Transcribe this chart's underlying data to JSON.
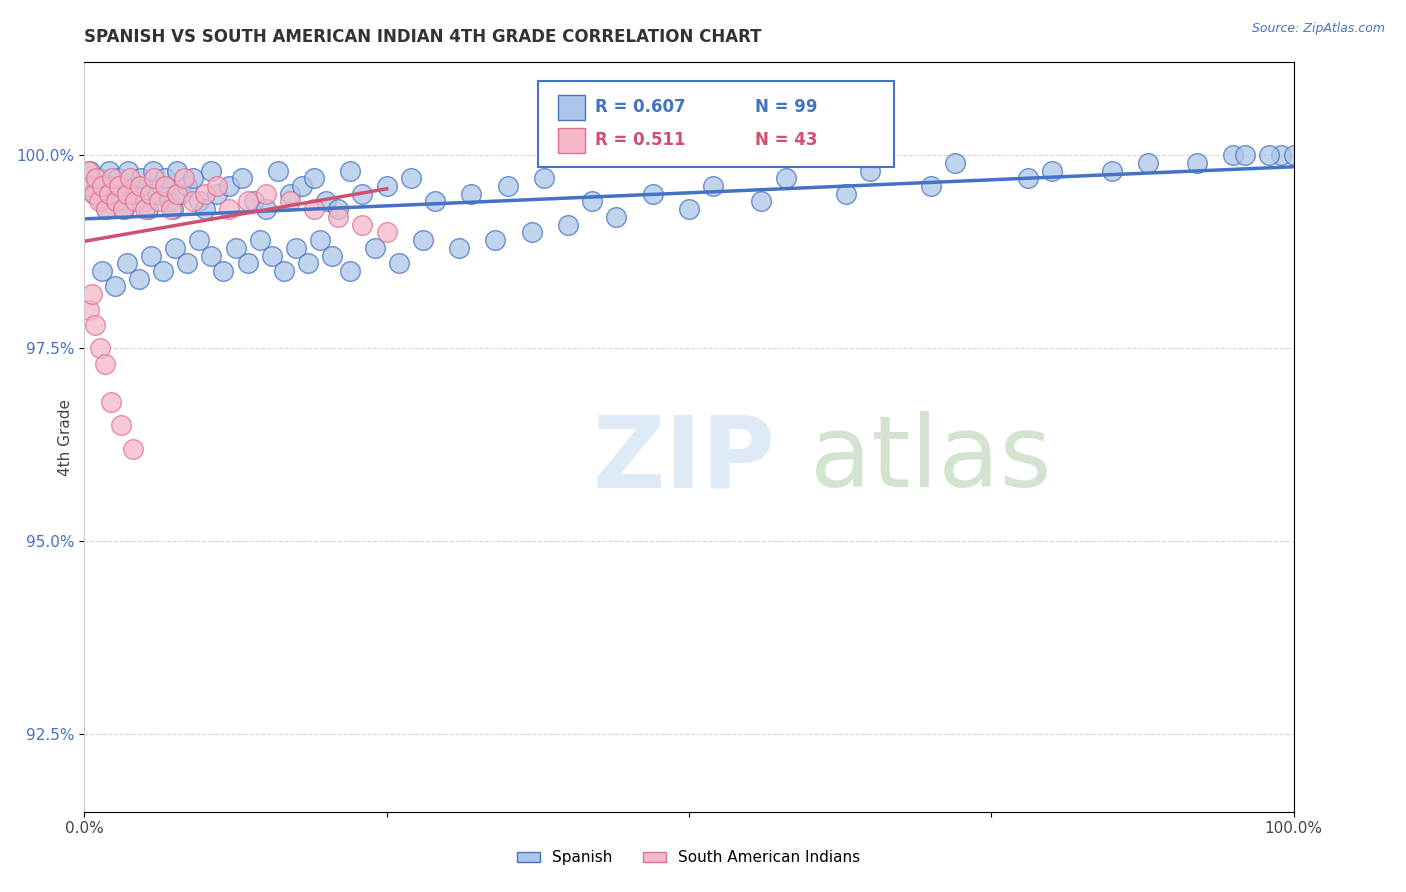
{
  "title": "SPANISH VS SOUTH AMERICAN INDIAN 4TH GRADE CORRELATION CHART",
  "source": "Source: ZipAtlas.com",
  "ylabel": "4th Grade",
  "xlim": [
    0,
    100
  ],
  "ylim": [
    91.5,
    101.2
  ],
  "yticks": [
    92.5,
    95.0,
    97.5,
    100.0
  ],
  "ytick_labels": [
    "92.5%",
    "95.0%",
    "97.5%",
    "100.0%"
  ],
  "legend_spanish": "Spanish",
  "legend_sam": "South American Indians",
  "blue_color": "#adc6e8",
  "pink_color": "#f5b8c8",
  "blue_edge_color": "#4472c4",
  "pink_edge_color": "#e07090",
  "blue_line_color": "#4472c4",
  "pink_line_color": "#d05070",
  "legend_r_blue": "R = 0.607",
  "legend_n_blue": "N = 99",
  "legend_r_pink": "R = 0.511",
  "legend_n_pink": "N = 43",
  "blue_scatter_x": [
    0.5,
    0.8,
    1.0,
    1.2,
    1.5,
    1.8,
    2.0,
    2.2,
    2.5,
    2.8,
    3.0,
    3.3,
    3.6,
    4.0,
    4.3,
    4.7,
    5.0,
    5.3,
    5.7,
    6.0,
    6.3,
    6.7,
    7.0,
    7.3,
    7.7,
    8.0,
    8.5,
    9.0,
    9.5,
    10.0,
    10.5,
    11.0,
    12.0,
    13.0,
    14.0,
    15.0,
    16.0,
    17.0,
    18.0,
    19.0,
    20.0,
    21.0,
    22.0,
    23.0,
    25.0,
    27.0,
    29.0,
    32.0,
    35.0,
    38.0,
    42.0,
    47.0,
    52.0,
    58.0,
    65.0,
    72.0,
    80.0,
    88.0,
    95.0,
    99.0,
    1.5,
    2.5,
    3.5,
    4.5,
    5.5,
    6.5,
    7.5,
    8.5,
    9.5,
    10.5,
    11.5,
    12.5,
    13.5,
    14.5,
    15.5,
    16.5,
    17.5,
    18.5,
    19.5,
    20.5,
    22.0,
    24.0,
    26.0,
    28.0,
    31.0,
    34.0,
    37.0,
    40.0,
    44.0,
    50.0,
    56.0,
    63.0,
    70.0,
    78.0,
    85.0,
    92.0,
    96.0,
    98.0,
    100.0
  ],
  "blue_scatter_y": [
    99.8,
    99.5,
    99.6,
    99.7,
    99.4,
    99.3,
    99.8,
    99.5,
    99.6,
    99.7,
    99.4,
    99.3,
    99.8,
    99.5,
    99.6,
    99.7,
    99.4,
    99.3,
    99.8,
    99.5,
    99.6,
    99.7,
    99.4,
    99.3,
    99.8,
    99.5,
    99.6,
    99.7,
    99.4,
    99.3,
    99.8,
    99.5,
    99.6,
    99.7,
    99.4,
    99.3,
    99.8,
    99.5,
    99.6,
    99.7,
    99.4,
    99.3,
    99.8,
    99.5,
    99.6,
    99.7,
    99.4,
    99.5,
    99.6,
    99.7,
    99.4,
    99.5,
    99.6,
    99.7,
    99.8,
    99.9,
    99.8,
    99.9,
    100.0,
    100.0,
    98.5,
    98.3,
    98.6,
    98.4,
    98.7,
    98.5,
    98.8,
    98.6,
    98.9,
    98.7,
    98.5,
    98.8,
    98.6,
    98.9,
    98.7,
    98.5,
    98.8,
    98.6,
    98.9,
    98.7,
    98.5,
    98.8,
    98.6,
    98.9,
    98.8,
    98.9,
    99.0,
    99.1,
    99.2,
    99.3,
    99.4,
    99.5,
    99.6,
    99.7,
    99.8,
    99.9,
    100.0,
    100.0,
    100.0
  ],
  "pink_scatter_x": [
    0.3,
    0.5,
    0.8,
    1.0,
    1.2,
    1.5,
    1.8,
    2.0,
    2.3,
    2.6,
    2.9,
    3.2,
    3.5,
    3.8,
    4.2,
    4.6,
    5.0,
    5.4,
    5.8,
    6.2,
    6.7,
    7.2,
    7.7,
    8.2,
    9.0,
    10.0,
    11.0,
    12.0,
    13.5,
    15.0,
    17.0,
    19.0,
    21.0,
    23.0,
    25.0,
    0.4,
    0.6,
    0.9,
    1.3,
    1.7,
    2.2,
    3.0,
    4.0
  ],
  "pink_scatter_y": [
    99.8,
    99.6,
    99.5,
    99.7,
    99.4,
    99.6,
    99.3,
    99.5,
    99.7,
    99.4,
    99.6,
    99.3,
    99.5,
    99.7,
    99.4,
    99.6,
    99.3,
    99.5,
    99.7,
    99.4,
    99.6,
    99.3,
    99.5,
    99.7,
    99.4,
    99.5,
    99.6,
    99.3,
    99.4,
    99.5,
    99.4,
    99.3,
    99.2,
    99.1,
    99.0,
    98.0,
    98.2,
    97.8,
    97.5,
    97.3,
    96.8,
    96.5,
    96.2
  ]
}
